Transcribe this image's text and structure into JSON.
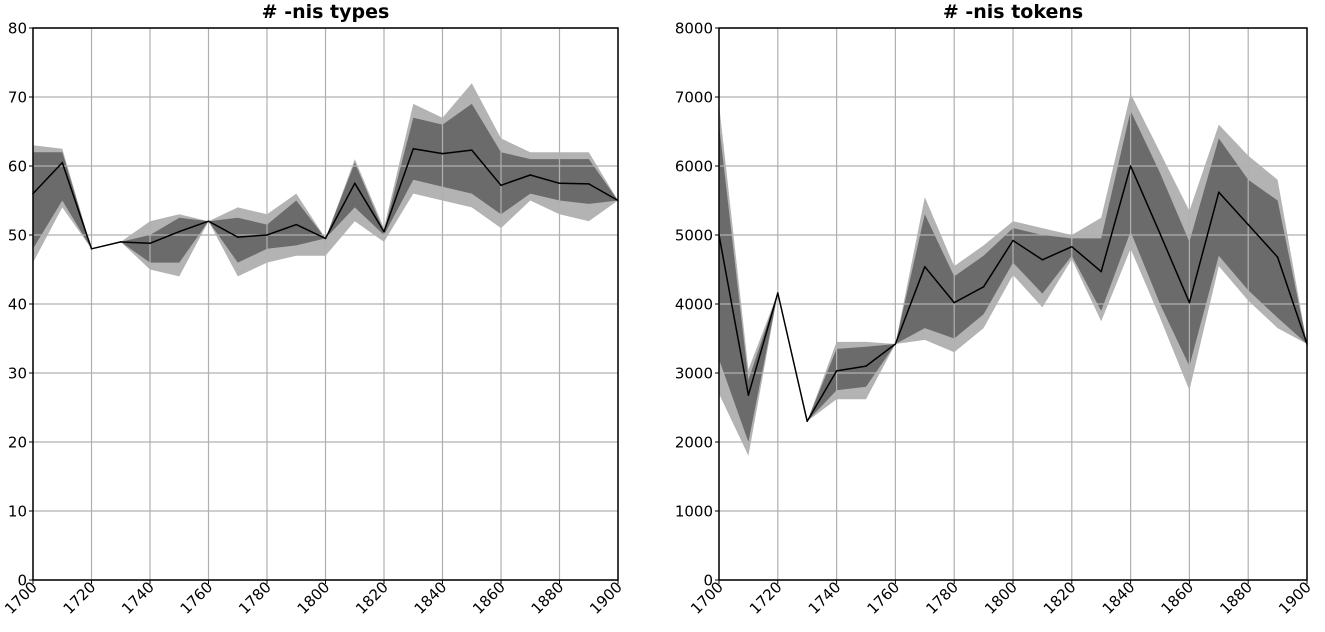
{
  "chart_data": [
    {
      "type": "area",
      "title": "# -nis types",
      "xlabel": "",
      "ylabel": "",
      "xlim": [
        1700,
        1900
      ],
      "ylim": [
        0,
        80
      ],
      "xticks": [
        "1700",
        "1720",
        "1740",
        "1760",
        "1780",
        "1800",
        "1820",
        "1840",
        "1860",
        "1880",
        "1900"
      ],
      "yticks": [
        "0",
        "10",
        "20",
        "30",
        "40",
        "50",
        "60",
        "70",
        "80"
      ],
      "grid": true,
      "colors": {
        "outer_band": "#b3b3b3",
        "inner_band": "#6b6b6b",
        "line": "#000000",
        "grid": "#b0b0b0"
      },
      "x": [
        1700,
        1710,
        1720,
        1730,
        1740,
        1750,
        1760,
        1770,
        1780,
        1790,
        1800,
        1810,
        1820,
        1830,
        1840,
        1850,
        1860,
        1870,
        1880,
        1890,
        1900
      ],
      "series": [
        {
          "role": "mean",
          "values": [
            56,
            60.5,
            48,
            49,
            48.8,
            50.5,
            52,
            49.7,
            50,
            51.5,
            49.5,
            57.5,
            50.5,
            62.5,
            61.8,
            62.3,
            57.2,
            58.7,
            57.5,
            57.4,
            55
          ]
        },
        {
          "role": "inner_upper",
          "values": [
            62,
            62,
            48,
            49,
            50,
            52.5,
            52,
            52.5,
            51.5,
            55,
            49.5,
            60.5,
            50.5,
            67,
            66,
            69,
            62,
            61,
            61,
            61,
            55
          ]
        },
        {
          "role": "inner_lower",
          "values": [
            48,
            55,
            48,
            49,
            46,
            46,
            52,
            46,
            48,
            48.5,
            49.5,
            54,
            50,
            58,
            57,
            56,
            53,
            56,
            55,
            54.5,
            55
          ]
        },
        {
          "role": "outer_upper",
          "values": [
            63,
            62.5,
            48,
            49,
            52,
            53,
            52,
            54,
            53,
            56,
            49.5,
            61,
            51,
            69,
            67,
            72,
            64,
            62,
            62,
            62,
            55
          ]
        },
        {
          "role": "outer_lower",
          "values": [
            46,
            54,
            48,
            49,
            45,
            44,
            52,
            44,
            46,
            47,
            47,
            52,
            49,
            56,
            55,
            54,
            51,
            55,
            53,
            52,
            55
          ]
        }
      ]
    },
    {
      "type": "area",
      "title": "# -nis tokens",
      "xlabel": "",
      "ylabel": "",
      "xlim": [
        1700,
        1900
      ],
      "ylim": [
        0,
        8000
      ],
      "xticks": [
        "1700",
        "1720",
        "1740",
        "1760",
        "1780",
        "1800",
        "1820",
        "1840",
        "1860",
        "1880",
        "1900"
      ],
      "yticks": [
        "0",
        "1000",
        "2000",
        "3000",
        "4000",
        "5000",
        "6000",
        "7000",
        "8000"
      ],
      "grid": true,
      "colors": {
        "outer_band": "#b3b3b3",
        "inner_band": "#6b6b6b",
        "line": "#000000",
        "grid": "#b0b0b0"
      },
      "x": [
        1700,
        1710,
        1720,
        1730,
        1740,
        1750,
        1760,
        1770,
        1780,
        1790,
        1800,
        1810,
        1820,
        1830,
        1840,
        1850,
        1860,
        1870,
        1880,
        1890,
        1900
      ],
      "series": [
        {
          "role": "mean",
          "values": [
            5000,
            2680,
            4160,
            2300,
            3030,
            3100,
            3420,
            4540,
            4020,
            4250,
            4920,
            4640,
            4830,
            4470,
            6000,
            5020,
            4020,
            5620,
            5150,
            4680,
            3420
          ]
        },
        {
          "role": "inner_upper",
          "values": [
            6600,
            2900,
            4160,
            2300,
            3350,
            3380,
            3420,
            5300,
            4400,
            4700,
            5100,
            5000,
            4950,
            4950,
            6800,
            5900,
            4900,
            6400,
            5800,
            5500,
            3420
          ]
        },
        {
          "role": "inner_lower",
          "values": [
            3200,
            2000,
            4160,
            2300,
            2750,
            2800,
            3420,
            3650,
            3500,
            3850,
            4600,
            4150,
            4700,
            3900,
            5050,
            4000,
            3100,
            4700,
            4200,
            3800,
            3420
          ]
        },
        {
          "role": "outer_upper",
          "values": [
            6900,
            3050,
            4160,
            2300,
            3450,
            3450,
            3420,
            5550,
            4550,
            4850,
            5200,
            5100,
            5000,
            5250,
            7050,
            6200,
            5350,
            6600,
            6150,
            5800,
            3420
          ]
        },
        {
          "role": "outer_lower",
          "values": [
            2700,
            1800,
            4160,
            2300,
            2620,
            2620,
            3420,
            3480,
            3300,
            3650,
            4420,
            3950,
            4650,
            3750,
            4800,
            3800,
            2750,
            4550,
            4050,
            3650,
            3420
          ]
        }
      ]
    }
  ]
}
